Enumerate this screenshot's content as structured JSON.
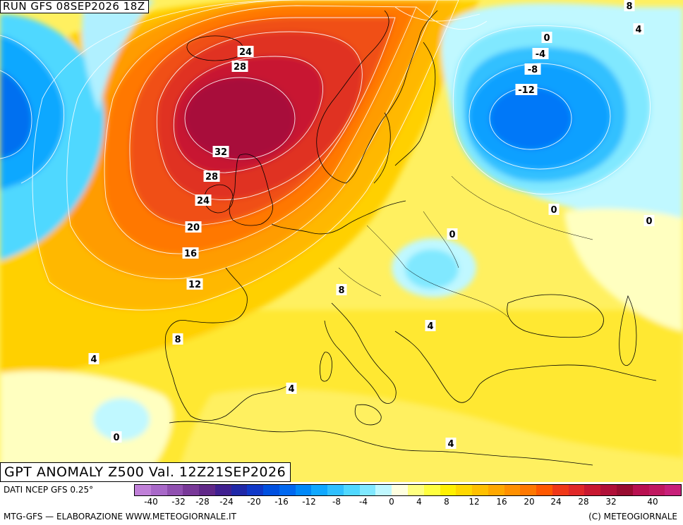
{
  "header": {
    "run_label": "RUN GFS 08SEP2026 18Z",
    "field_label": "GPT ANOMALY Z500 Val. 12Z21SEP2026"
  },
  "footer": {
    "data_source": "DATI NCEP GFS 0.25°",
    "credit_left": "MTG-GFS — ELABORAZIONE WWW.METEOGIORNALE.IT",
    "credit_right": "(C) METEOGIORNALE"
  },
  "colorbar": {
    "colors": [
      "#c080d8",
      "#a868c8",
      "#9050b0",
      "#783898",
      "#602888",
      "#402090",
      "#2028a8",
      "#1038c8",
      "#0050e0",
      "#0068f0",
      "#0088f8",
      "#10a8ff",
      "#30c0ff",
      "#50d8ff",
      "#80e8ff",
      "#c0f8ff",
      "#ffffe0",
      "#ffff80",
      "#ffff40",
      "#fff000",
      "#ffd800",
      "#ffc000",
      "#ffa800",
      "#ff9000",
      "#ff7800",
      "#ff5800",
      "#f03818",
      "#e02828",
      "#c81830",
      "#b01038",
      "#980c30",
      "#b81050",
      "#c01860",
      "#c8207a"
    ],
    "ticks": [
      "-40",
      "-32",
      "-28",
      "-24",
      "-20",
      "-16",
      "-12",
      "-8",
      "-4",
      "0",
      "4",
      "8",
      "12",
      "16",
      "20",
      "24",
      "28",
      "32",
      "40"
    ]
  },
  "map": {
    "contour_labels": [
      {
        "text": "24"
      },
      {
        "text": "28"
      },
      {
        "text": "32"
      },
      {
        "text": "28"
      },
      {
        "text": "24"
      },
      {
        "text": "20"
      },
      {
        "text": "16"
      },
      {
        "text": "12"
      },
      {
        "text": "8"
      },
      {
        "text": "4"
      },
      {
        "text": "0"
      },
      {
        "text": "8"
      },
      {
        "text": "4"
      },
      {
        "text": "4"
      },
      {
        "text": "4"
      },
      {
        "text": "0"
      },
      {
        "text": "0"
      },
      {
        "text": "0"
      },
      {
        "text": "-4"
      },
      {
        "text": "-8"
      },
      {
        "text": "-12"
      },
      {
        "text": "0"
      },
      {
        "text": "8"
      },
      {
        "text": "4"
      }
    ]
  }
}
